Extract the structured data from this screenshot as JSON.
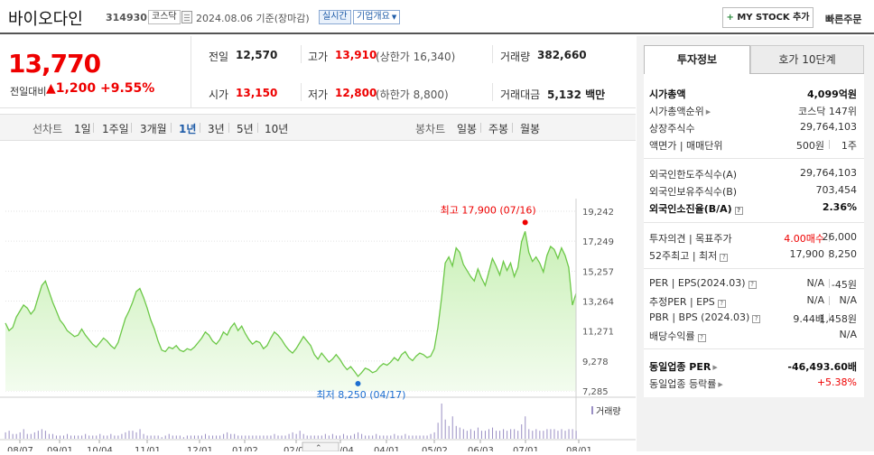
{
  "header": {
    "stock_name": "바이오다인",
    "stock_code": "314930",
    "market": "코스닥",
    "date_text": "2024.08.06 기준(장마감)",
    "realtime_label": "실시간",
    "company_label": "기업개요",
    "mystock_label": "MY STOCK 추가",
    "quick_order_label": "빠른주문"
  },
  "summary": {
    "price": "13,770",
    "change_label": "전일대비",
    "change_value": "1,200",
    "change_pct": "+9.55%",
    "prev_close_label": "전일",
    "prev_close": "12,570",
    "open_label": "시가",
    "open": "13,150",
    "high_label": "고가",
    "high": "13,910",
    "upper_limit": "(상한가 16,340)",
    "low_label": "저가",
    "low": "12,800",
    "lower_limit": "(하한가 8,800)",
    "volume_label": "거래량",
    "volume": "382,660",
    "amount_label": "거래대금",
    "amount": "5,132 백만"
  },
  "periods": {
    "line_label": "선차트",
    "line_items": [
      "1일",
      "1주일",
      "3개월",
      "1년",
      "3년",
      "5년",
      "10년"
    ],
    "active_index": 3,
    "candle_label": "봉차트",
    "candle_items": [
      "일봉",
      "주봉",
      "월봉"
    ]
  },
  "chart_data": {
    "type": "area",
    "y_ticks": [
      "19,242",
      "17,249",
      "15,257",
      "13,264",
      "11,271",
      "9,278",
      "7,285"
    ],
    "ylim": [
      7285,
      19242
    ],
    "x_ticks": [
      "08/07",
      "09/01",
      "10/04",
      "11/01",
      "12/01",
      "01/02",
      "02/01",
      "03/04",
      "04/01",
      "05/02",
      "06/03",
      "07/01",
      "08/01"
    ],
    "high_label": "최고 17,900 (07/16)",
    "high_value": 17900,
    "low_label": "최저 8,250 (04/17)",
    "low_value": 8250,
    "volume_label": "거래량",
    "prices": [
      11800,
      11300,
      11500,
      12200,
      12600,
      13000,
      12800,
      12400,
      12700,
      13500,
      14300,
      14600,
      13900,
      13200,
      12600,
      12000,
      11700,
      11300,
      11100,
      10900,
      11000,
      11400,
      11000,
      10700,
      10400,
      10200,
      10500,
      10800,
      10600,
      10300,
      10100,
      10500,
      11300,
      12100,
      12600,
      13200,
      13900,
      14100,
      13500,
      12800,
      12000,
      11400,
      10600,
      10000,
      9900,
      10200,
      10100,
      10300,
      10000,
      9900,
      10100,
      10000,
      10200,
      10500,
      10800,
      11200,
      11000,
      10600,
      10400,
      10700,
      11200,
      11000,
      11500,
      11800,
      11300,
      11600,
      11100,
      10700,
      10400,
      10600,
      10500,
      10100,
      10300,
      10800,
      11200,
      11000,
      10700,
      10300,
      10000,
      9800,
      10100,
      10500,
      10900,
      10600,
      10300,
      9700,
      9400,
      9800,
      9500,
      9200,
      9400,
      9700,
      9400,
      9000,
      8700,
      8900,
      8600,
      8250,
      8500,
      8800,
      8700,
      8500,
      8600,
      8900,
      9100,
      9000,
      9200,
      9500,
      9300,
      9700,
      9900,
      9500,
      9300,
      9600,
      9800,
      9700,
      9500,
      9600,
      10100,
      11500,
      13500,
      15800,
      16200,
      15600,
      16800,
      16500,
      15700,
      15300,
      14900,
      14600,
      15400,
      14800,
      14300,
      15200,
      16100,
      15600,
      15000,
      15900,
      15300,
      15800,
      14900,
      15500,
      17200,
      17900,
      16500,
      15900,
      16200,
      15800,
      15200,
      16300,
      16900,
      16700,
      16100,
      16800,
      16300,
      15500,
      13000,
      13770
    ],
    "volumes": [
      4,
      5,
      3,
      3,
      4,
      6,
      3,
      3,
      4,
      5,
      6,
      5,
      3,
      3,
      2,
      2,
      2,
      3,
      2,
      2,
      2,
      2,
      3,
      2,
      2,
      2,
      3,
      2,
      2,
      3,
      2,
      2,
      3,
      4,
      5,
      5,
      4,
      6,
      3,
      2,
      2,
      2,
      2,
      1,
      2,
      3,
      2,
      2,
      2,
      1,
      2,
      2,
      2,
      2,
      2,
      3,
      2,
      2,
      2,
      2,
      3,
      4,
      3,
      3,
      2,
      2,
      2,
      2,
      2,
      2,
      2,
      2,
      2,
      2,
      3,
      2,
      2,
      2,
      3,
      4,
      3,
      5,
      3,
      2,
      2,
      2,
      2,
      2,
      3,
      2,
      3,
      2,
      2,
      3,
      2,
      2,
      3,
      4,
      3,
      2,
      2,
      2,
      3,
      2,
      2,
      2,
      2,
      3,
      2,
      2,
      3,
      2,
      2,
      2,
      2,
      2,
      2,
      3,
      4,
      10,
      22,
      12,
      8,
      14,
      8,
      7,
      6,
      5,
      6,
      5,
      7,
      5,
      5,
      6,
      7,
      5,
      5,
      6,
      5,
      6,
      6,
      5,
      9,
      14,
      6,
      5,
      6,
      5,
      5,
      6,
      6,
      6,
      5,
      6,
      5,
      6,
      6,
      5
    ]
  },
  "invest": {
    "tab_active": "투자정보",
    "tab_other": "호가 10단계",
    "market_cap_label": "시가총액",
    "market_cap": "4,099억원",
    "rank_label": "시가총액순위",
    "rank": "코스닥 147위",
    "shares_label": "상장주식수",
    "shares": "29,764,103",
    "face_label": "액면가 | 매매단위",
    "face": "500원",
    "unit": "1주",
    "foreign_limit_label": "외국인한도주식수(A)",
    "foreign_limit": "29,764,103",
    "foreign_hold_label": "외국인보유주식수(B)",
    "foreign_hold": "703,454",
    "foreign_ratio_label": "외국인소진율(B/A)",
    "foreign_ratio": "2.36%",
    "opinion_label": "투자의견 | 목표주가",
    "opinion": "4.00매수",
    "target": "26,000",
    "range_label": "52주최고 | 최저",
    "high52": "17,900",
    "low52": "8,250",
    "per_label": "PER | EPS(2024.03)",
    "per": "N/A",
    "eps": "-45원",
    "est_label": "추정PER | EPS",
    "est_per": "N/A",
    "est_eps": "N/A",
    "pbr_label": "PBR | BPS (2024.03)",
    "pbr": "9.44배",
    "bps": "1,458원",
    "div_label": "배당수익률",
    "div": "N/A",
    "ind_per_label": "동일업종 PER",
    "ind_per": "-46,493.60배",
    "ind_chg_label": "동일업종 등락률",
    "ind_chg": "+5.38%"
  }
}
